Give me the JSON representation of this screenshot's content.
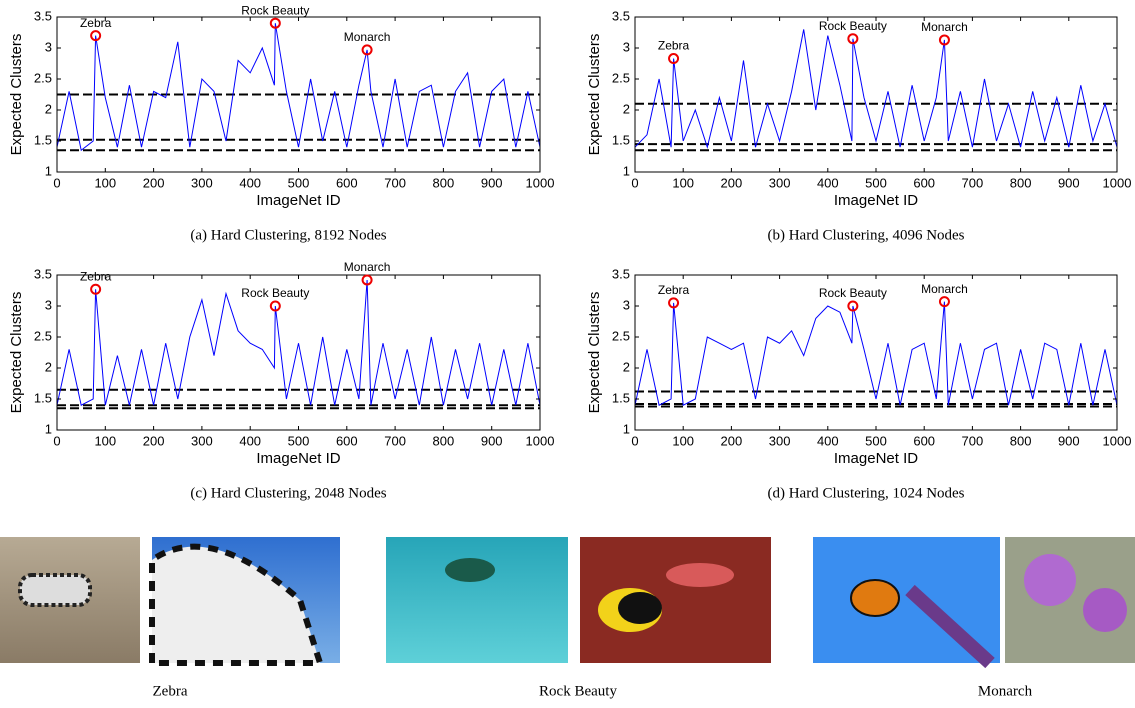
{
  "chart_data": [
    {
      "type": "line",
      "xlabel": "ImageNet ID",
      "ylabel": "Expected Clusters",
      "caption": "(a) Hard Clustering, 8192 Nodes",
      "xlim": [
        0,
        1000
      ],
      "ylim": [
        1,
        3.5
      ],
      "xticks": [
        0,
        100,
        200,
        300,
        400,
        500,
        600,
        700,
        800,
        900,
        1000
      ],
      "yticks": [
        1,
        1.5,
        2,
        2.5,
        3,
        3.5
      ],
      "color": "#0000ff",
      "x": [
        0,
        25,
        50,
        75,
        80,
        100,
        125,
        150,
        175,
        200,
        225,
        250,
        275,
        300,
        325,
        350,
        375,
        400,
        425,
        450,
        452,
        475,
        500,
        525,
        550,
        575,
        600,
        625,
        642,
        650,
        675,
        700,
        725,
        750,
        775,
        800,
        825,
        850,
        875,
        900,
        925,
        950,
        975,
        1000
      ],
      "values": [
        1.4,
        2.3,
        1.35,
        1.5,
        3.2,
        2.2,
        1.4,
        2.4,
        1.4,
        2.3,
        2.2,
        3.1,
        1.4,
        2.5,
        2.3,
        1.5,
        2.8,
        2.6,
        3.0,
        2.4,
        3.4,
        2.3,
        1.4,
        2.5,
        1.5,
        2.3,
        1.4,
        2.4,
        2.97,
        2.3,
        1.4,
        2.5,
        1.4,
        2.3,
        2.4,
        1.4,
        2.3,
        2.6,
        1.4,
        2.3,
        2.5,
        1.4,
        2.3,
        1.4
      ],
      "hlines": [
        1.35,
        1.52,
        2.25
      ],
      "annotations": [
        {
          "text": "Zebra",
          "x": 80,
          "y": 3.2
        },
        {
          "text": "Rock Beauty",
          "x": 452,
          "y": 3.4
        },
        {
          "text": "Monarch",
          "x": 642,
          "y": 2.97
        }
      ]
    },
    {
      "type": "line",
      "xlabel": "ImageNet ID",
      "ylabel": "Expected Clusters",
      "caption": "(b) Hard Clustering, 4096 Nodes",
      "xlim": [
        0,
        1000
      ],
      "ylim": [
        1,
        3.5
      ],
      "xticks": [
        0,
        100,
        200,
        300,
        400,
        500,
        600,
        700,
        800,
        900,
        1000
      ],
      "yticks": [
        1,
        1.5,
        2,
        2.5,
        3,
        3.5
      ],
      "color": "#0000ff",
      "x": [
        0,
        25,
        50,
        75,
        80,
        100,
        125,
        150,
        175,
        200,
        225,
        250,
        275,
        300,
        325,
        350,
        375,
        400,
        425,
        450,
        452,
        475,
        500,
        525,
        550,
        575,
        600,
        625,
        642,
        650,
        675,
        700,
        725,
        750,
        775,
        800,
        825,
        850,
        875,
        900,
        925,
        950,
        975,
        1000
      ],
      "values": [
        1.4,
        1.6,
        2.5,
        1.4,
        2.83,
        1.5,
        2.0,
        1.4,
        2.2,
        1.5,
        2.8,
        1.4,
        2.1,
        1.5,
        2.3,
        3.3,
        2.0,
        3.2,
        2.4,
        1.5,
        3.15,
        2.2,
        1.5,
        2.3,
        1.4,
        2.4,
        1.5,
        2.2,
        3.13,
        1.5,
        2.3,
        1.4,
        2.5,
        1.5,
        2.1,
        1.4,
        2.3,
        1.5,
        2.2,
        1.4,
        2.4,
        1.5,
        2.1,
        1.4
      ],
      "hlines": [
        1.35,
        1.45,
        2.1
      ],
      "annotations": [
        {
          "text": "Zebra",
          "x": 80,
          "y": 2.83
        },
        {
          "text": "Rock Beauty",
          "x": 452,
          "y": 3.15
        },
        {
          "text": "Monarch",
          "x": 642,
          "y": 3.13
        }
      ]
    },
    {
      "type": "line",
      "xlabel": "ImageNet ID",
      "ylabel": "Expected Clusters",
      "caption": "(c) Hard Clustering, 2048 Nodes",
      "xlim": [
        0,
        1000
      ],
      "ylim": [
        1,
        3.5
      ],
      "xticks": [
        0,
        100,
        200,
        300,
        400,
        500,
        600,
        700,
        800,
        900,
        1000
      ],
      "yticks": [
        1,
        1.5,
        2,
        2.5,
        3,
        3.5
      ],
      "color": "#0000ff",
      "x": [
        0,
        25,
        50,
        75,
        80,
        100,
        125,
        150,
        175,
        200,
        225,
        250,
        275,
        300,
        325,
        350,
        375,
        400,
        425,
        450,
        452,
        475,
        500,
        525,
        550,
        575,
        600,
        625,
        642,
        650,
        675,
        700,
        725,
        750,
        775,
        800,
        825,
        850,
        875,
        900,
        925,
        950,
        975,
        1000
      ],
      "values": [
        1.4,
        2.3,
        1.4,
        1.5,
        3.27,
        1.4,
        2.2,
        1.4,
        2.3,
        1.4,
        2.4,
        1.5,
        2.5,
        3.1,
        2.2,
        3.2,
        2.6,
        2.4,
        2.3,
        2.0,
        3.0,
        1.5,
        2.4,
        1.4,
        2.5,
        1.4,
        2.3,
        1.5,
        3.42,
        1.4,
        2.4,
        1.5,
        2.3,
        1.4,
        2.5,
        1.4,
        2.3,
        1.5,
        2.4,
        1.4,
        2.3,
        1.4,
        2.4,
        1.4
      ],
      "hlines": [
        1.35,
        1.4,
        1.65
      ],
      "annotations": [
        {
          "text": "Zebra",
          "x": 80,
          "y": 3.27
        },
        {
          "text": "Rock Beauty",
          "x": 452,
          "y": 3.0
        },
        {
          "text": "Monarch",
          "x": 642,
          "y": 3.42
        }
      ]
    },
    {
      "type": "line",
      "xlabel": "ImageNet ID",
      "ylabel": "Expected Clusters",
      "caption": "(d) Hard Clustering, 1024 Nodes",
      "xlim": [
        0,
        1000
      ],
      "ylim": [
        1,
        3.5
      ],
      "xticks": [
        0,
        100,
        200,
        300,
        400,
        500,
        600,
        700,
        800,
        900,
        1000
      ],
      "yticks": [
        1,
        1.5,
        2,
        2.5,
        3,
        3.5
      ],
      "color": "#0000ff",
      "x": [
        0,
        25,
        50,
        75,
        80,
        100,
        125,
        150,
        175,
        200,
        225,
        250,
        275,
        300,
        325,
        350,
        375,
        400,
        425,
        450,
        452,
        475,
        500,
        525,
        550,
        575,
        600,
        625,
        642,
        650,
        675,
        700,
        725,
        750,
        775,
        800,
        825,
        850,
        875,
        900,
        925,
        950,
        975,
        1000
      ],
      "values": [
        1.4,
        2.3,
        1.4,
        1.5,
        3.05,
        1.4,
        1.5,
        2.5,
        2.4,
        2.3,
        2.4,
        1.5,
        2.5,
        2.4,
        2.6,
        2.2,
        2.8,
        3.0,
        2.9,
        2.4,
        3.0,
        2.3,
        1.5,
        2.4,
        1.4,
        2.3,
        2.4,
        1.5,
        3.07,
        1.4,
        2.4,
        1.5,
        2.3,
        2.4,
        1.4,
        2.3,
        1.5,
        2.4,
        2.3,
        1.4,
        2.4,
        1.4,
        2.3,
        1.4
      ],
      "hlines": [
        1.38,
        1.42,
        1.62
      ],
      "annotations": [
        {
          "text": "Zebra",
          "x": 80,
          "y": 3.05
        },
        {
          "text": "Rock Beauty",
          "x": 452,
          "y": 3.0
        },
        {
          "text": "Monarch",
          "x": 642,
          "y": 3.07
        }
      ]
    }
  ],
  "photo_captions": [
    "Zebra",
    "Rock Beauty",
    "Monarch"
  ]
}
